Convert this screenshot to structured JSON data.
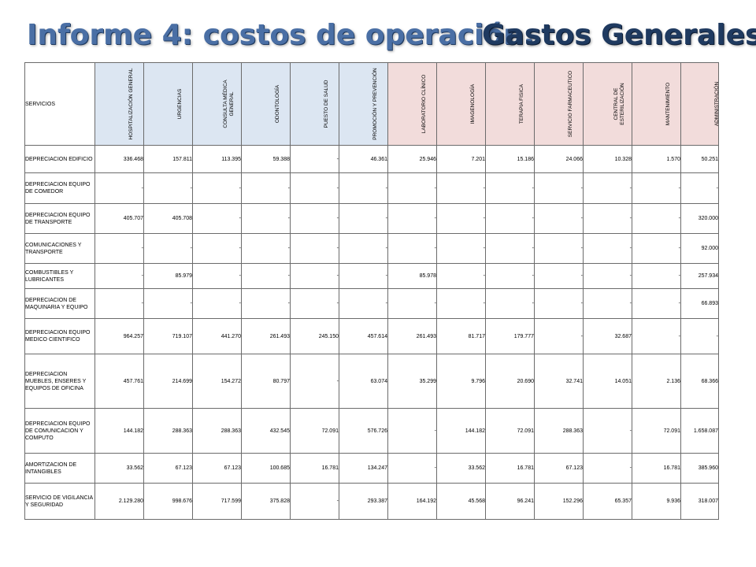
{
  "title": {
    "left": "Informe 4: costos de operación.",
    "right": "Gastos Generales"
  },
  "table": {
    "service_header": "SERVICIOS",
    "columns": [
      {
        "label": "HOSPITALIZACIÓN GENERAL",
        "tint": "blue"
      },
      {
        "label": "URGENCIAS",
        "tint": "blue"
      },
      {
        "label": "CONSULTA MÉDICA GENERAL",
        "tint": "blue"
      },
      {
        "label": "ODONTOLOGÍA",
        "tint": "blue"
      },
      {
        "label": "PUESTO DE SALUD",
        "tint": "blue"
      },
      {
        "label": "PROMOCIÓN Y PREVENCIÓN",
        "tint": "blue"
      },
      {
        "label": "LABORATORIO CLÍNICO",
        "tint": "pink"
      },
      {
        "label": "IMAGENOLOGÍA",
        "tint": "pink"
      },
      {
        "label": "TERAPIA FISICA",
        "tint": "pink"
      },
      {
        "label": "SERVICIO FARMACEUTICO",
        "tint": "pink"
      },
      {
        "label": "CENTRAL DE ESTERILIZACIÓN",
        "tint": "pink"
      },
      {
        "label": "MANTENIMIENTO",
        "tint": "pink"
      },
      {
        "label": "ADMINISTRACIÓN",
        "tint": "pink"
      }
    ],
    "rows": [
      {
        "label": "DEPRECIACION EDIFICIO",
        "values": [
          "336.468",
          "157.811",
          "113.395",
          "59.388",
          "-",
          "46.361",
          "25.946",
          "7.201",
          "15.186",
          "24.066",
          "10.328",
          "1.570",
          "50.251"
        ]
      },
      {
        "label": "DEPRECIACION EQUIPO DE COMEDOR",
        "values": [
          "-",
          "-",
          "-",
          "-",
          "-",
          "-",
          "-",
          "-",
          "-",
          "-",
          "-",
          "-",
          "-"
        ]
      },
      {
        "label": "DEPRECIACION EQUIPO DE TRANSPORTE",
        "values": [
          "405.707",
          "405.708",
          "-",
          "-",
          "-",
          "-",
          "-",
          "-",
          "-",
          "-",
          "-",
          "-",
          "320.000"
        ]
      },
      {
        "label": "COMUNICACIONES Y TRANSPORTE",
        "values": [
          "-",
          "-",
          "-",
          "-",
          "-",
          "-",
          "-",
          "-",
          "-",
          "-",
          "-",
          "-",
          "92.000"
        ]
      },
      {
        "label": "COMBUSTIBLES Y LUBRICANTES",
        "values": [
          "-",
          "85.979",
          "-",
          "-",
          "-",
          "-",
          "85.978",
          "-",
          "-",
          "-",
          "-",
          "-",
          "257.934"
        ]
      },
      {
        "label": "DEPRECIACION DE MAQUINARIA Y EQUIPO",
        "values": [
          "-",
          "-",
          "-",
          "-",
          "-",
          "-",
          "-",
          "-",
          "-",
          "-",
          "-",
          "-",
          "66.893"
        ]
      },
      {
        "label": "DEPRECIACION EQUIPO MEDICO CIENTIFICO",
        "values": [
          "964.257",
          "719.107",
          "441.270",
          "261.493",
          "245.150",
          "457.614",
          "261.493",
          "81.717",
          "179.777",
          "-",
          "32.687",
          "-",
          "-"
        ]
      },
      {
        "label": "DEPRECIACION MUEBLES, ENSERES Y EQUIPOS DE OFICINA",
        "values": [
          "457.761",
          "214.699",
          "154.272",
          "80.797",
          "-",
          "63.074",
          "35.299",
          "9.796",
          "20.690",
          "32.741",
          "14.051",
          "2.136",
          "68.366"
        ]
      },
      {
        "label": "DEPRECIACION EQUIPO DE COMUNICACION Y COMPUTO",
        "values": [
          "144.182",
          "288.363",
          "288.363",
          "432.545",
          "72.091",
          "576.726",
          "-",
          "144.182",
          "72.091",
          "288.363",
          "-",
          "72.091",
          "1.658.087"
        ]
      },
      {
        "label": "AMORTIZACION DE INTANGIBLES",
        "values": [
          "33.562",
          "67.123",
          "67.123",
          "100.685",
          "16.781",
          "134.247",
          "-",
          "33.562",
          "16.781",
          "67.123",
          "-",
          "16.781",
          "385.960"
        ]
      },
      {
        "label": "SERVICIO DE VIGILANCIA Y SEGURIDAD",
        "values": [
          "2.129.280",
          "998.676",
          "717.599",
          "375.828",
          "-",
          "293.387",
          "164.192",
          "45.568",
          "96.241",
          "152.296",
          "65.357",
          "9.936",
          "318.007"
        ]
      }
    ]
  }
}
